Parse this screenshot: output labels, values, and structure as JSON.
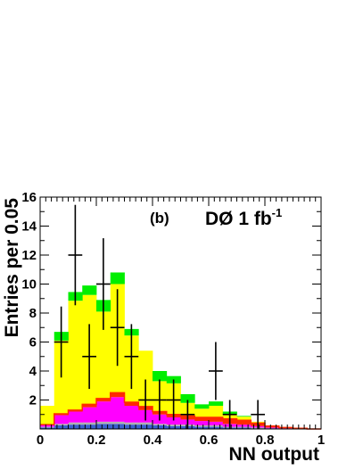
{
  "chart_data": {
    "type": "bar",
    "stacked": true,
    "x_bin_edges": [
      0.0,
      0.05,
      0.1,
      0.15,
      0.2,
      0.25,
      0.3,
      0.35,
      0.4,
      0.45,
      0.5,
      0.55,
      0.6,
      0.65,
      0.7,
      0.75,
      0.8,
      0.85,
      0.9,
      0.95,
      1.0
    ],
    "series": [
      {
        "color": "#3a5fcd",
        "values": [
          0.1,
          0.25,
          0.3,
          0.3,
          0.35,
          0.35,
          0.3,
          0.3,
          0.25,
          0.2,
          0.2,
          0.15,
          0.15,
          0.1,
          0.1,
          0.05,
          0.05,
          0.0,
          0.0,
          0.0
        ]
      },
      {
        "color": "#b0b0b0",
        "values": [
          0.05,
          0.1,
          0.15,
          0.15,
          0.15,
          0.15,
          0.15,
          0.15,
          0.1,
          0.1,
          0.1,
          0.1,
          0.1,
          0.05,
          0.05,
          0.05,
          0.0,
          0.0,
          0.0,
          0.0
        ]
      },
      {
        "color": "#ff00ff",
        "values": [
          0.15,
          0.6,
          0.75,
          1.05,
          1.4,
          1.7,
          1.15,
          0.85,
          0.65,
          0.5,
          0.35,
          0.3,
          0.25,
          0.2,
          0.15,
          0.1,
          0.05,
          0.05,
          0.0,
          0.0
        ]
      },
      {
        "color": "#ff2a00",
        "values": [
          0.0,
          0.1,
          0.1,
          0.2,
          0.2,
          0.3,
          0.25,
          0.25,
          0.2,
          0.2,
          0.25,
          0.25,
          0.3,
          0.35,
          0.3,
          0.2,
          0.1,
          0.05,
          0.05,
          0.0
        ]
      },
      {
        "color": "#ffff00",
        "values": [
          1.3,
          5.05,
          7.55,
          7.55,
          6.0,
          7.5,
          4.6,
          3.85,
          2.1,
          2.15,
          0.9,
          0.6,
          0.8,
          0.3,
          0.25,
          0.1,
          0.05,
          0.0,
          0.0,
          0.0
        ]
      },
      {
        "color": "#00ee00",
        "values": [
          0.0,
          0.6,
          0.6,
          0.65,
          0.8,
          0.8,
          0.45,
          0.0,
          0.7,
          0.5,
          0.6,
          0.3,
          0.3,
          0.2,
          0.05,
          0.0,
          0.0,
          0.0,
          0.0,
          0.0
        ]
      }
    ],
    "data_points": {
      "x": [
        0.075,
        0.125,
        0.175,
        0.225,
        0.275,
        0.325,
        0.375,
        0.425,
        0.475,
        0.525,
        0.625,
        0.675,
        0.775
      ],
      "y": [
        6,
        12,
        5,
        10,
        7,
        5,
        2,
        2,
        2,
        1,
        4,
        1,
        1
      ]
    },
    "xlabel": "NN output",
    "ylabel": "Entries per 0.05",
    "xlim": [
      0,
      1
    ],
    "ylim": [
      0,
      16
    ],
    "x_ticks": [
      "0",
      "0.2",
      "0.4",
      "0.6",
      "0.8",
      "1"
    ],
    "y_ticks": [
      "2",
      "4",
      "6",
      "8",
      "10",
      "12",
      "14",
      "16"
    ],
    "annotations": {
      "panel_label": "(b)",
      "lumi_main": "DØ 1 fb",
      "lumi_sup": "-1"
    }
  }
}
